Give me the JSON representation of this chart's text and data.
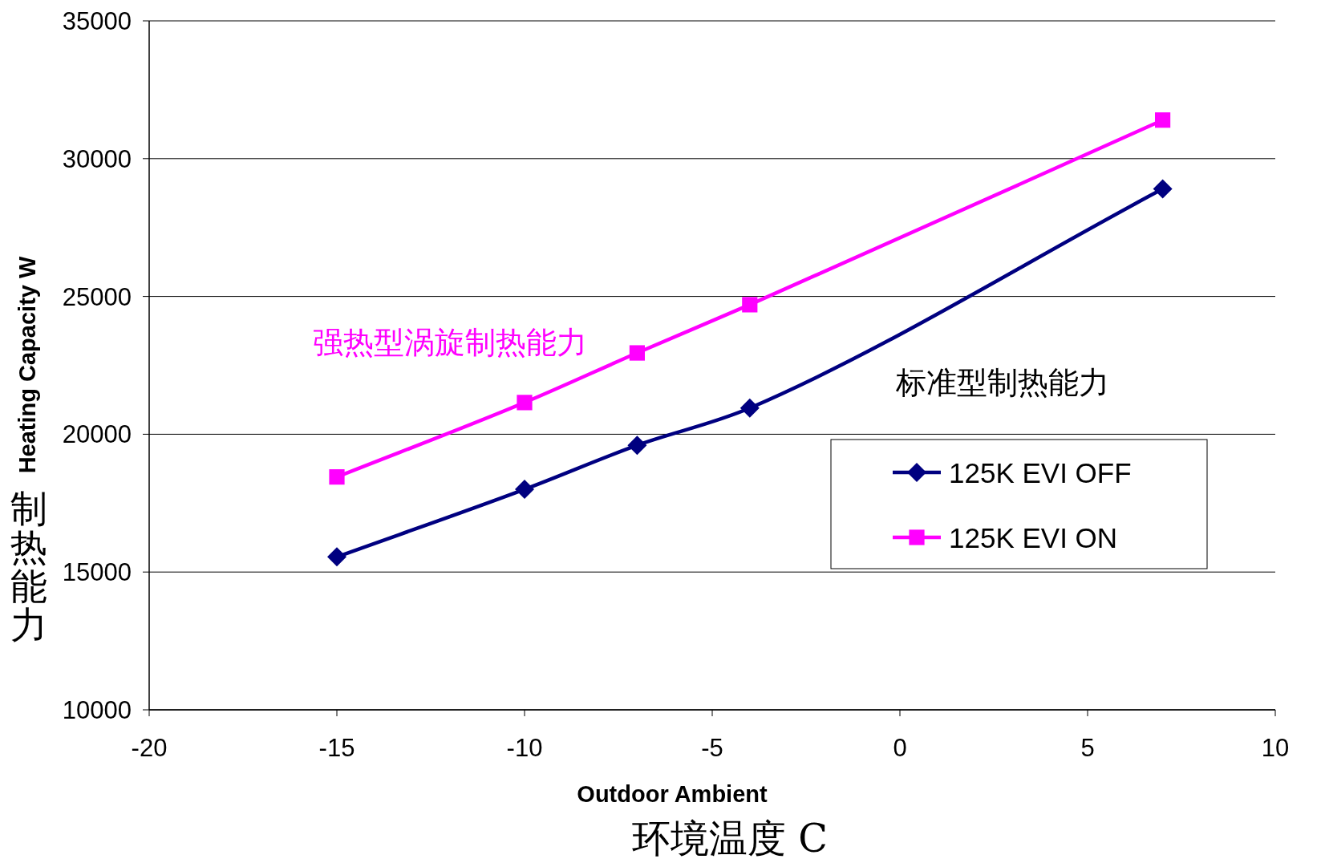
{
  "chart_data": {
    "type": "line",
    "xlabel": "Outdoor Ambient",
    "ylabel": "Heating Capacity W",
    "xlim": [
      -20,
      10
    ],
    "xticks": [
      -20,
      -15,
      -10,
      -5,
      0,
      5,
      10
    ],
    "ylim": [
      10000,
      35000
    ],
    "yticks": [
      10000,
      15000,
      20000,
      25000,
      30000,
      35000
    ],
    "grid": "y",
    "legend": "right",
    "line_style": "solid",
    "series": [
      {
        "name": "125K EVI OFF",
        "color": "#000080",
        "marker": "diamond",
        "x": [
          -15,
          -10,
          -7,
          -4,
          7
        ],
        "values": [
          15550,
          18000,
          19600,
          20950,
          28900
        ]
      },
      {
        "name": "125K EVI ON",
        "color": "#ff00ff",
        "marker": "square",
        "x": [
          -15,
          -10,
          -7,
          -4,
          7
        ],
        "values": [
          18450,
          21150,
          22950,
          24700,
          31400
        ]
      }
    ],
    "annotations": [
      "强热型涡旋制热能力",
      "标准型制热能力",
      "制热能力",
      "环境温度 C"
    ]
  }
}
